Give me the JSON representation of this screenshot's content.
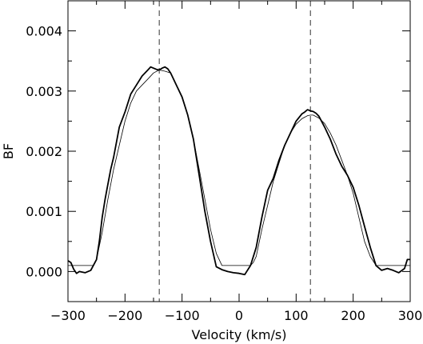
{
  "chart_data": {
    "type": "line",
    "title": "",
    "xlabel": "Velocity (km/s)",
    "ylabel": "BF",
    "xlim": [
      -300,
      300
    ],
    "ylim": [
      -0.0005,
      0.0045
    ],
    "grid": false,
    "legend": "none",
    "x_ticks": [
      -300,
      -200,
      -100,
      0,
      100,
      200,
      300
    ],
    "x_tick_labels": [
      "−300",
      "−200",
      "−100",
      "0",
      "100",
      "200",
      "300"
    ],
    "y_ticks": [
      0,
      0.001,
      0.002,
      0.003,
      0.004
    ],
    "y_tick_labels": [
      "0.000",
      "0.001",
      "0.002",
      "0.003",
      "0.004"
    ],
    "vertical_lines": [
      -140,
      125
    ],
    "series": [
      {
        "style": "thick",
        "x": [
          -300,
          -295,
          -290,
          -285,
          -280,
          -270,
          -260,
          -250,
          -245,
          -240,
          -235,
          -230,
          -225,
          -220,
          -210,
          -200,
          -190,
          -180,
          -170,
          -160,
          -155,
          -150,
          -145,
          -140,
          -135,
          -130,
          -125,
          -120,
          -110,
          -100,
          -90,
          -80,
          -70,
          -60,
          -50,
          -40,
          -30,
          -20,
          -10,
          0,
          10,
          20,
          30,
          40,
          50,
          60,
          70,
          80,
          90,
          100,
          110,
          115,
          120,
          125,
          130,
          135,
          140,
          150,
          160,
          170,
          180,
          190,
          200,
          210,
          220,
          230,
          240,
          250,
          260,
          270,
          280,
          290,
          295,
          300
        ],
        "y": [
          0.00018,
          0.00015,
          4e-05,
          -3e-05,
          0.0,
          -2e-05,
          2e-05,
          0.0002,
          0.0005,
          0.0009,
          0.0012,
          0.00145,
          0.0017,
          0.0019,
          0.0024,
          0.00265,
          0.00295,
          0.0031,
          0.00325,
          0.00335,
          0.0034,
          0.00338,
          0.00336,
          0.00335,
          0.00338,
          0.0034,
          0.00337,
          0.0033,
          0.0031,
          0.0029,
          0.0026,
          0.0022,
          0.0016,
          0.001,
          0.0005,
          8e-05,
          3e-05,
          0.0,
          -2e-05,
          -3e-05,
          -5e-05,
          0.0001,
          0.0004,
          0.0009,
          0.00135,
          0.00155,
          0.00185,
          0.0021,
          0.0023,
          0.0025,
          0.00262,
          0.00265,
          0.00269,
          0.00267,
          0.00266,
          0.00263,
          0.00258,
          0.0024,
          0.0022,
          0.00195,
          0.00175,
          0.0016,
          0.0014,
          0.0011,
          0.00075,
          0.0004,
          0.0001,
          2e-05,
          5e-05,
          2e-05,
          -2e-05,
          5e-05,
          0.0002,
          0.0002
        ]
      },
      {
        "style": "thin",
        "x": [
          -300,
          -260,
          -255,
          -250,
          -240,
          -230,
          -220,
          -210,
          -200,
          -190,
          -180,
          -170,
          -160,
          -150,
          -140,
          -130,
          -120,
          -110,
          -100,
          -90,
          -80,
          -70,
          -60,
          -50,
          -40,
          -30,
          -25,
          -20,
          0,
          20,
          25,
          30,
          40,
          50,
          60,
          70,
          80,
          90,
          100,
          110,
          120,
          125,
          130,
          140,
          150,
          160,
          170,
          180,
          190,
          200,
          210,
          220,
          230,
          240,
          245,
          250,
          300
        ],
        "y": [
          0.0001,
          0.0001,
          0.0001,
          0.0002,
          0.00065,
          0.0012,
          0.0017,
          0.0021,
          0.0025,
          0.0028,
          0.003,
          0.0031,
          0.0032,
          0.0033,
          0.00335,
          0.00333,
          0.0033,
          0.0031,
          0.0029,
          0.0026,
          0.0022,
          0.0017,
          0.0012,
          0.0007,
          0.0003,
          0.0001,
          0.0001,
          0.0001,
          0.0001,
          0.0001,
          0.00015,
          0.00025,
          0.0007,
          0.0011,
          0.0015,
          0.0018,
          0.0021,
          0.0023,
          0.00245,
          0.00254,
          0.00259,
          0.0026,
          0.0026,
          0.00255,
          0.00246,
          0.0023,
          0.0021,
          0.00185,
          0.0016,
          0.0013,
          0.0009,
          0.0005,
          0.00025,
          0.0001,
          0.0001,
          0.0001,
          0.0001
        ]
      }
    ]
  }
}
